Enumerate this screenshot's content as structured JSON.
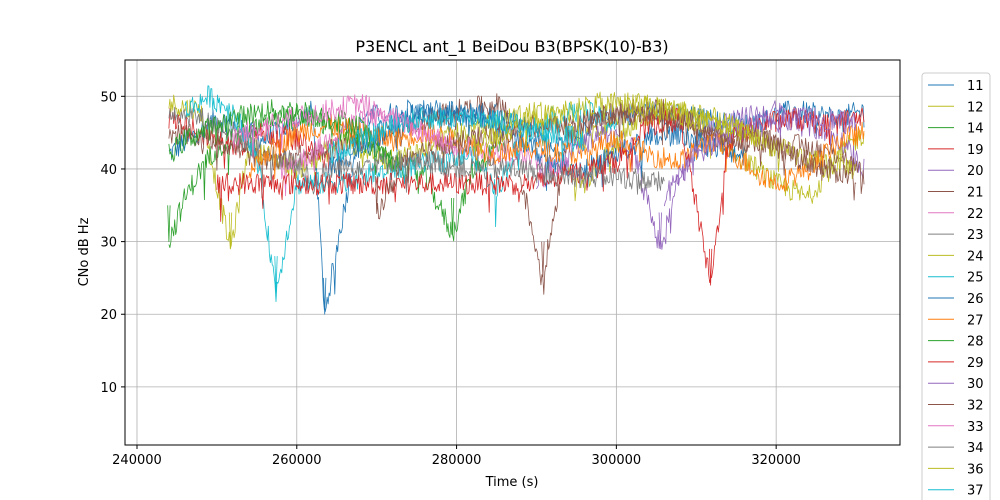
{
  "chart_data": {
    "type": "line",
    "title": "P3ENCL ant_1 BeiDou B3(BPSK(10)-B3)",
    "xlabel": "Time (s)",
    "ylabel": "CNo dB Hz",
    "xlim": [
      238500,
      335500
    ],
    "ylim": [
      2,
      55
    ],
    "xticks": [
      240000,
      260000,
      280000,
      300000,
      320000
    ],
    "yticks": [
      10,
      20,
      30,
      40,
      50
    ],
    "grid": true,
    "legend_position": "right-outside",
    "data_range_x": [
      244000,
      331000
    ],
    "series": [
      {
        "name": "11",
        "color": "#1f77b4",
        "values": [
          [
            244000,
            42
          ],
          [
            250000,
            47
          ],
          [
            256000,
            44
          ],
          [
            262000,
            48
          ],
          [
            263500,
            20
          ],
          [
            268000,
            47
          ],
          [
            274000,
            48
          ],
          [
            280000,
            47
          ],
          [
            286000,
            48
          ],
          [
            292000,
            43
          ],
          [
            298000,
            47
          ],
          [
            304000,
            48
          ],
          [
            310000,
            47
          ],
          [
            316000,
            46
          ],
          [
            322000,
            48
          ],
          [
            328000,
            47
          ],
          [
            331000,
            48
          ]
        ]
      },
      {
        "name": "12",
        "color": "#bcbd22",
        "values": [
          [
            244000,
            49
          ],
          [
            248000,
            48
          ],
          [
            251700,
            29
          ],
          [
            254000,
            43
          ],
          [
            260000,
            40
          ],
          [
            266000,
            44
          ],
          [
            272000,
            41
          ],
          [
            278000,
            44
          ],
          [
            284000,
            46
          ],
          [
            290000,
            48
          ],
          [
            296000,
            44
          ],
          [
            302000,
            49
          ],
          [
            308000,
            48
          ],
          [
            314000,
            43
          ],
          [
            320000,
            38
          ],
          [
            324000,
            36
          ],
          [
            328000,
            42
          ],
          [
            331000,
            45
          ]
        ]
      },
      {
        "name": "14",
        "color": "#2ca02c",
        "values": [
          [
            244000,
            30
          ],
          [
            246000,
            36
          ],
          [
            248000,
            40
          ],
          [
            250000,
            43
          ],
          [
            254000,
            45
          ],
          [
            258000,
            47
          ],
          [
            262000,
            47
          ],
          [
            264000,
            46
          ],
          [
            268000,
            44
          ],
          [
            272000,
            41
          ],
          [
            276000,
            39
          ],
          [
            279500,
            31
          ],
          [
            282000,
            40
          ],
          [
            286000,
            44
          ]
        ]
      },
      {
        "name": "19",
        "color": "#d62728",
        "values": [
          [
            244000,
            47
          ],
          [
            246000,
            46
          ],
          [
            248000,
            45
          ],
          [
            252000,
            43
          ],
          [
            256000,
            45
          ],
          [
            260000,
            44
          ],
          [
            264000,
            41
          ]
        ]
      },
      {
        "name": "20",
        "color": "#9467bd",
        "values": [
          [
            290000,
            38
          ],
          [
            294000,
            42
          ],
          [
            298000,
            45
          ],
          [
            302000,
            43
          ],
          [
            305500,
            29
          ],
          [
            308000,
            40
          ],
          [
            312000,
            46
          ],
          [
            316000,
            47
          ],
          [
            320000,
            48
          ],
          [
            324000,
            46
          ],
          [
            328000,
            44
          ],
          [
            331000,
            40
          ]
        ]
      },
      {
        "name": "21",
        "color": "#8c564b",
        "values": [
          [
            244000,
            45
          ],
          [
            250000,
            44
          ],
          [
            256000,
            41
          ],
          [
            262000,
            42
          ],
          [
            268000,
            44
          ],
          [
            274000,
            46
          ],
          [
            280000,
            48
          ],
          [
            286000,
            49
          ],
          [
            290800,
            25
          ],
          [
            294000,
            45
          ],
          [
            300000,
            48
          ],
          [
            306000,
            47
          ],
          [
            312000,
            44
          ],
          [
            318000,
            44
          ],
          [
            324000,
            43
          ],
          [
            328000,
            42
          ],
          [
            331000,
            39
          ]
        ]
      },
      {
        "name": "22",
        "color": "#e377c2",
        "values": [
          [
            258000,
            40
          ],
          [
            262000,
            42
          ],
          [
            266000,
            46
          ],
          [
            270000,
            47
          ],
          [
            274000,
            46
          ],
          [
            278000,
            44
          ],
          [
            282000,
            43
          ],
          [
            286000,
            42
          ],
          [
            290000,
            41
          ],
          [
            294000,
            40
          ]
        ]
      },
      {
        "name": "23",
        "color": "#7f7f7f",
        "values": [
          [
            244000,
            48
          ],
          [
            248000,
            47
          ],
          [
            252000,
            45
          ],
          [
            256000,
            42
          ],
          [
            260000,
            41
          ],
          [
            262000,
            38
          ],
          [
            264000,
            40
          ]
        ]
      },
      {
        "name": "24",
        "color": "#bcbd22",
        "values": [
          [
            294000,
            40
          ],
          [
            296000,
            38
          ],
          [
            298000,
            41
          ],
          [
            302000,
            46
          ],
          [
            306000,
            48
          ],
          [
            310000,
            48
          ],
          [
            314000,
            46
          ],
          [
            318000,
            44
          ],
          [
            322000,
            42
          ],
          [
            326000,
            41
          ],
          [
            330000,
            40
          ]
        ]
      },
      {
        "name": "25",
        "color": "#17becf",
        "values": [
          [
            246000,
            48
          ],
          [
            249000,
            50
          ],
          [
            252000,
            48
          ],
          [
            255000,
            42
          ],
          [
            257400,
            23
          ],
          [
            260000,
            38
          ],
          [
            264000,
            38
          ],
          [
            282000,
            42
          ],
          [
            285000,
            37
          ],
          [
            288000,
            44
          ],
          [
            292000,
            47
          ],
          [
            296000,
            48
          ],
          [
            300000,
            46
          ]
        ]
      },
      {
        "name": "26",
        "color": "#1f77b4",
        "values": [
          [
            264000,
            40
          ],
          [
            268000,
            43
          ],
          [
            272000,
            46
          ],
          [
            276000,
            48
          ],
          [
            280000,
            48
          ],
          [
            284000,
            47
          ],
          [
            288000,
            44
          ],
          [
            292000,
            41
          ],
          [
            296000,
            40
          ],
          [
            300000,
            42
          ],
          [
            304000,
            44
          ],
          [
            308000,
            45
          ],
          [
            312000,
            43
          ],
          [
            316000,
            42
          ]
        ]
      },
      {
        "name": "27",
        "color": "#ff7f0e",
        "values": [
          [
            254000,
            40
          ],
          [
            256000,
            42
          ],
          [
            260000,
            45
          ],
          [
            264000,
            46
          ],
          [
            268000,
            45
          ],
          [
            272000,
            44
          ],
          [
            276000,
            45
          ],
          [
            280000,
            44
          ],
          [
            284000,
            42
          ],
          [
            288000,
            43
          ],
          [
            296000,
            42
          ],
          [
            300000,
            44
          ],
          [
            304000,
            42
          ],
          [
            308000,
            41
          ],
          [
            312000,
            44
          ],
          [
            316000,
            41
          ],
          [
            320000,
            38
          ],
          [
            324000,
            40
          ],
          [
            328000,
            44
          ],
          [
            331000,
            45
          ]
        ]
      },
      {
        "name": "28",
        "color": "#2ca02c",
        "values": [
          [
            244000,
            42
          ],
          [
            246000,
            44
          ],
          [
            248000,
            45
          ],
          [
            252000,
            47
          ],
          [
            256000,
            48
          ],
          [
            260000,
            48
          ],
          [
            264000,
            47
          ],
          [
            268000,
            46
          ],
          [
            270000,
            43
          ],
          [
            272000,
            40
          ]
        ]
      },
      {
        "name": "29",
        "color": "#d62728",
        "values": [
          [
            250000,
            38
          ],
          [
            256000,
            38
          ],
          [
            262000,
            38
          ],
          [
            270000,
            38
          ],
          [
            280000,
            38
          ],
          [
            290000,
            38
          ],
          [
            300000,
            41
          ],
          [
            304000,
            46
          ],
          [
            308000,
            47
          ],
          [
            311800,
            24
          ],
          [
            314000,
            44
          ],
          [
            318000,
            46
          ],
          [
            322000,
            47
          ],
          [
            326000,
            46
          ],
          [
            330000,
            47
          ],
          [
            331000,
            47
          ]
        ]
      },
      {
        "name": "30",
        "color": "#9467bd",
        "values": [
          [
            306000,
            36
          ],
          [
            310000,
            42
          ],
          [
            314000,
            45
          ],
          [
            318000,
            46
          ],
          [
            322000,
            47
          ],
          [
            326000,
            47
          ],
          [
            330000,
            46
          ]
        ]
      },
      {
        "name": "32",
        "color": "#8c564b",
        "values": [
          [
            270000,
            34
          ],
          [
            274000,
            42
          ],
          [
            278000,
            43
          ],
          [
            282000,
            44
          ],
          [
            286000,
            45
          ],
          [
            290000,
            46
          ],
          [
            294000,
            46
          ],
          [
            298000,
            47
          ],
          [
            302000,
            48
          ],
          [
            306000,
            48
          ],
          [
            310000,
            46
          ],
          [
            314000,
            44
          ],
          [
            318000,
            44
          ],
          [
            322000,
            42
          ],
          [
            326000,
            40
          ],
          [
            330000,
            39
          ]
        ]
      },
      {
        "name": "33",
        "color": "#e377c2",
        "values": [
          [
            252000,
            44
          ],
          [
            256000,
            46
          ],
          [
            260000,
            47
          ],
          [
            264000,
            48
          ],
          [
            268000,
            49
          ],
          [
            272000,
            47
          ],
          [
            276000,
            45
          ],
          [
            280000,
            43
          ]
        ]
      },
      {
        "name": "34",
        "color": "#7f7f7f",
        "values": [
          [
            264000,
            40
          ],
          [
            270000,
            41
          ],
          [
            276000,
            41
          ],
          [
            282000,
            40
          ],
          [
            288000,
            40
          ],
          [
            294000,
            39
          ],
          [
            300000,
            39
          ],
          [
            306000,
            38
          ]
        ]
      },
      {
        "name": "36",
        "color": "#bcbd22",
        "values": [
          [
            282000,
            43
          ],
          [
            286000,
            45
          ],
          [
            290000,
            47
          ],
          [
            294000,
            48
          ],
          [
            298000,
            49
          ],
          [
            302000,
            49
          ],
          [
            306000,
            48
          ],
          [
            310000,
            47
          ],
          [
            314000,
            46
          ],
          [
            318000,
            44
          ]
        ]
      },
      {
        "name": "37",
        "color": "#17becf",
        "values": [
          [
            264000,
            42
          ],
          [
            268000,
            44
          ],
          [
            272000,
            46
          ],
          [
            276000,
            47
          ],
          [
            280000,
            47
          ],
          [
            284000,
            47
          ],
          [
            288000,
            46
          ],
          [
            292000,
            45
          ],
          [
            296000,
            44
          ]
        ]
      }
    ]
  }
}
